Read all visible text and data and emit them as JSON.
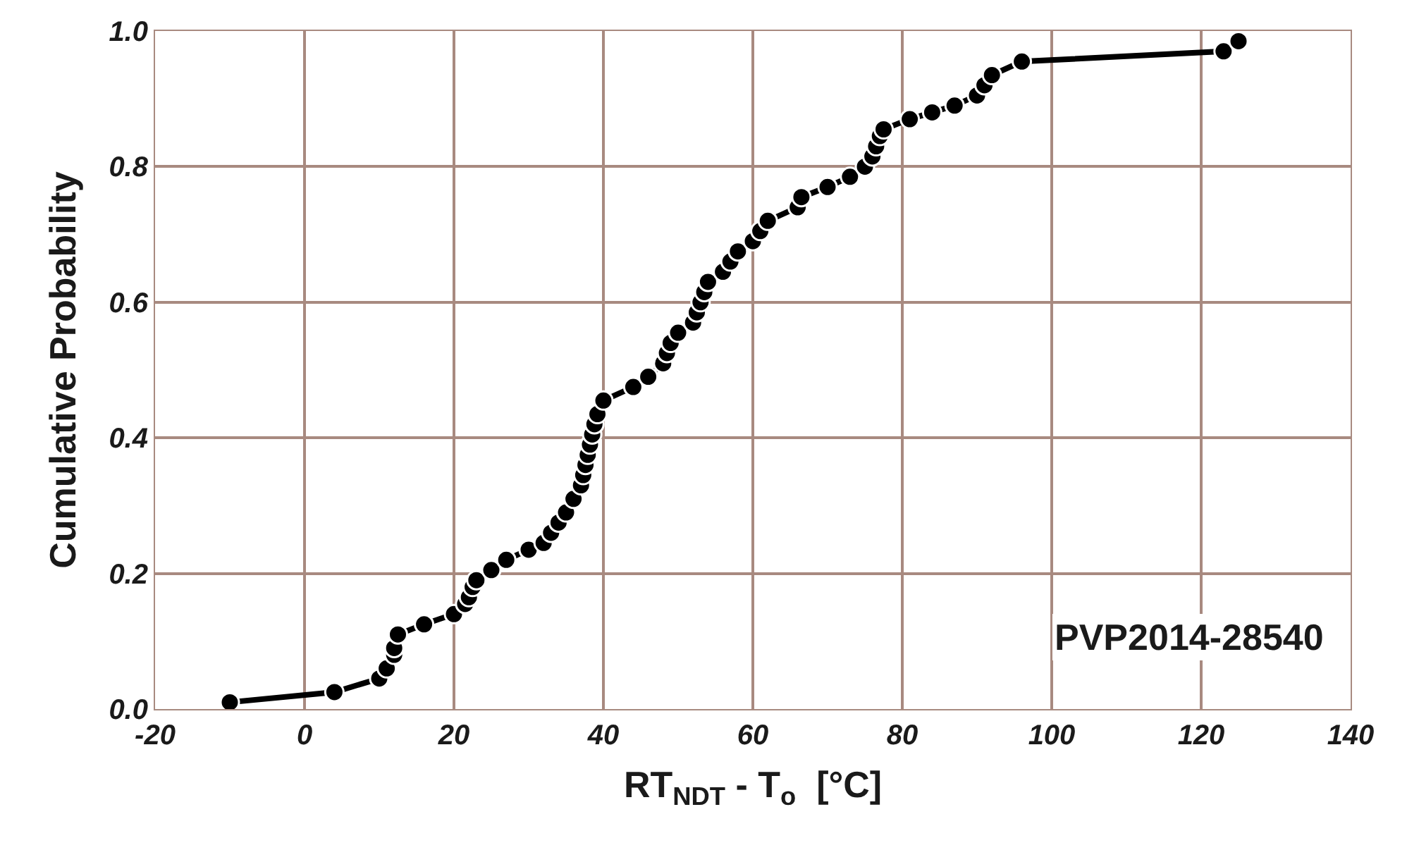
{
  "chart_data": {
    "type": "line",
    "xlabel": "RT$_{NDT}$ - T$_{o}$  [°C]",
    "ylabel": "Cumulative Probability",
    "annotations": [
      "PVP2014-28540"
    ],
    "xlim": [
      -20,
      140
    ],
    "xticks": [
      -20,
      0,
      20,
      40,
      60,
      80,
      100,
      120,
      140
    ],
    "ylim": [
      0,
      1
    ],
    "yticks": [
      {
        "value": 0,
        "label": "0.0"
      },
      {
        "value": 0.2,
        "label": "0.2"
      },
      {
        "value": 0.4,
        "label": "0.4"
      },
      {
        "value": 0.6,
        "label": "0.6"
      },
      {
        "value": 0.8,
        "label": "0.8"
      },
      {
        "value": 1,
        "label": "1.0"
      }
    ],
    "grid": true,
    "marker": "circle",
    "line_style": "solid",
    "series": [
      {
        "color": "#000000",
        "x": [
          -10,
          4,
          10,
          11,
          12,
          12,
          12.5,
          16,
          20,
          21.5,
          22,
          22.5,
          23,
          25,
          27,
          30,
          32,
          33,
          34,
          35,
          36,
          37,
          37.3,
          37.6,
          37.9,
          38.2,
          38.5,
          38.8,
          39.2,
          40,
          44,
          46,
          48,
          48.5,
          49,
          50,
          52,
          52.5,
          53,
          53.5,
          54,
          56,
          57,
          58,
          60,
          61,
          62,
          66,
          66.5,
          70,
          73,
          75,
          76,
          76.5,
          77,
          77.5,
          81,
          84,
          87,
          90,
          91,
          92,
          96,
          123,
          125
        ],
        "values": [
          0.01,
          0.025,
          0.045,
          0.06,
          0.08,
          0.09,
          0.11,
          0.125,
          0.14,
          0.155,
          0.165,
          0.18,
          0.19,
          0.205,
          0.22,
          0.235,
          0.245,
          0.26,
          0.275,
          0.29,
          0.31,
          0.33,
          0.345,
          0.36,
          0.375,
          0.39,
          0.405,
          0.42,
          0.435,
          0.455,
          0.475,
          0.49,
          0.51,
          0.525,
          0.54,
          0.555,
          0.57,
          0.585,
          0.6,
          0.615,
          0.63,
          0.645,
          0.66,
          0.675,
          0.69,
          0.705,
          0.72,
          0.74,
          0.755,
          0.77,
          0.785,
          0.8,
          0.815,
          0.83,
          0.845,
          0.855,
          0.87,
          0.88,
          0.89,
          0.905,
          0.92,
          0.935,
          0.955,
          0.97,
          0.985
        ]
      }
    ]
  }
}
